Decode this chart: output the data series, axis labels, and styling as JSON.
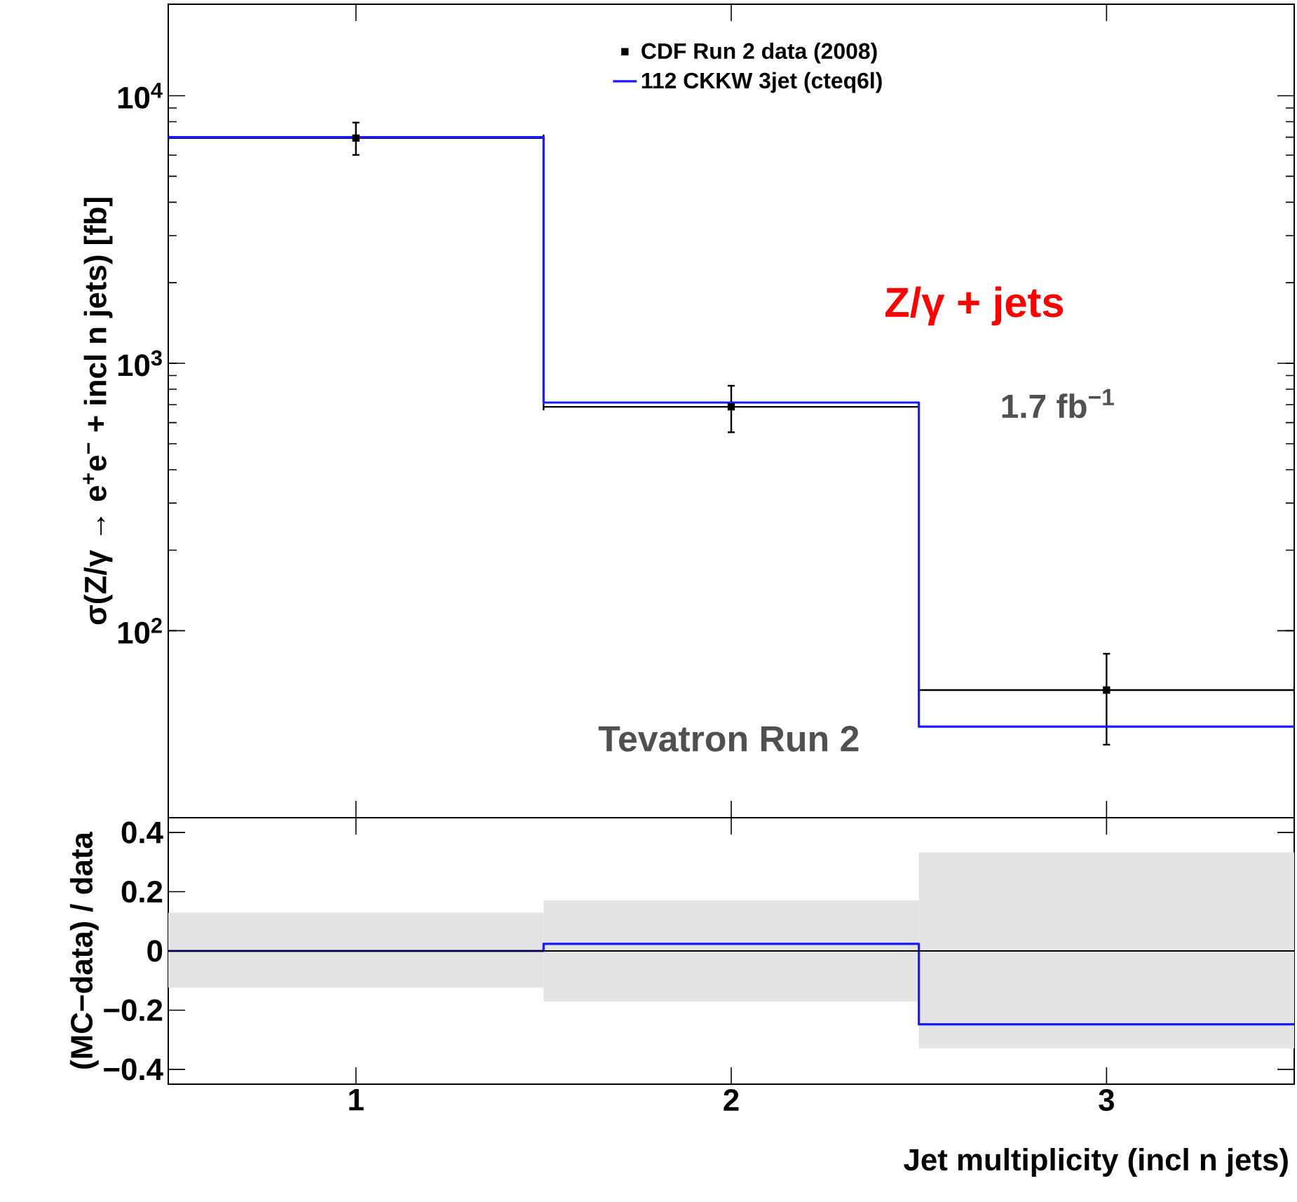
{
  "chart_data": [
    {
      "type": "scatter",
      "ylabel": "σ(Z/γ → e$^{+}$e$^{−}$ + incl n jets)  [fb]",
      "log": "y",
      "xlim": [
        0.5,
        3.5
      ],
      "xticks": [
        1,
        2,
        3
      ],
      "ylim": [
        20,
        22000
      ],
      "yticks": [
        {
          "value": 100,
          "label": "10$^{2}$"
        },
        {
          "value": 1000,
          "label": "10$^{3}$"
        },
        {
          "value": 10000,
          "label": "10$^{4}$"
        }
      ],
      "tick_labels": "y",
      "legend": "top right",
      "marker": "square",
      "annotations": [
        "Z/γ + jets",
        "1.7 fb$^{−1}$",
        "Tevatron Run 2"
      ],
      "series": [
        {
          "name": "CDF Run 2 data (2008)",
          "color": "#000000",
          "x": [
            1,
            2,
            3
          ],
          "values": [
            6950,
            687,
            60
          ],
          "errors": [
            [
              6010,
              7940
            ],
            [
              552,
              824
            ],
            [
              37.5,
              82
            ]
          ],
          "xerrors": [
            0.5,
            0.5,
            0.5
          ]
        },
        {
          "name": "112 CKKW 3jet (cteq6l)",
          "type": "histogram",
          "color": "#1a1aff",
          "bins": [
            0.5,
            1.5,
            2.5,
            3.5
          ],
          "values": [
            7000,
            713,
            43.8
          ]
        }
      ]
    },
    {
      "type": "histogram",
      "xlabel": "Jet multiplicity  (incl n jets)",
      "ylabel": "(MC−data) / data",
      "bins": [
        0.5,
        1.5,
        2.5,
        3.5
      ],
      "xlim": [
        0.5,
        3.5
      ],
      "xticks": [
        1,
        2,
        3
      ],
      "ylim": [
        -0.45,
        0.45
      ],
      "yticks": [
        {
          "value": -0.4,
          "label": "−0.4"
        },
        {
          "value": -0.2,
          "label": "−0.2"
        },
        0,
        0.2,
        0.4
      ],
      "ref_lines": [
        {
          "axis": "y",
          "value": 0,
          "color": "#000000"
        }
      ],
      "series": [
        {
          "color": "#e4e4e4",
          "base": [
            -0.124,
            -0.171,
            -0.329
          ],
          "values": [
            0.253,
            0.342,
            0.662
          ]
        },
        {
          "color": "#1a1aff",
          "values": [
            0,
            0.024,
            -0.248
          ]
        }
      ]
    }
  ]
}
